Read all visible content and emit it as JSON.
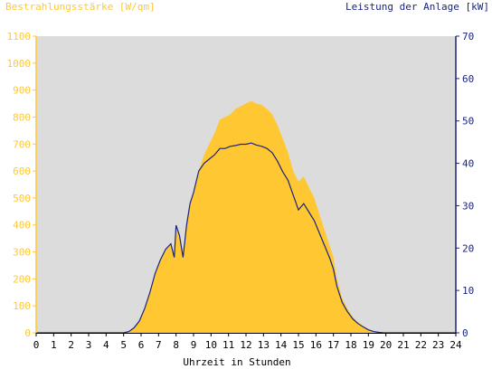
{
  "chart_data": {
    "type": "area",
    "left_axis_title": "Bestrahlungsstärke [W/qm]",
    "right_axis_title": "Leistung der Anlage [kW]",
    "xlabel": "Uhrzeit in Stunden",
    "xlim": [
      0,
      24
    ],
    "ylim_left": [
      0,
      1100
    ],
    "ylim_right": [
      0,
      70
    ],
    "x_ticks": [
      "0",
      "1",
      "2",
      "3",
      "4",
      "5",
      "6",
      "7",
      "8",
      "9",
      "10",
      "11",
      "12",
      "13",
      "14",
      "15",
      "16",
      "17",
      "18",
      "19",
      "20",
      "21",
      "22",
      "23",
      "24"
    ],
    "y_ticks_left": [
      "0",
      "100",
      "200",
      "300",
      "400",
      "500",
      "600",
      "700",
      "800",
      "900",
      "1000",
      "1100"
    ],
    "y_ticks_right": [
      "0",
      "10",
      "20",
      "30",
      "40",
      "50",
      "60",
      "70"
    ],
    "grid": false,
    "colors": {
      "plot_bg": "#dcdcdc",
      "irradiance": "#ffc832",
      "power": "#1a237e",
      "left_axis": "#ffc832",
      "right_axis": "#1a237e"
    },
    "series": [
      {
        "name": "Bestrahlungsstärke [W/qm]",
        "axis": "left",
        "x": [
          0,
          5.0,
          5.3,
          5.6,
          5.9,
          6.2,
          6.5,
          6.8,
          7.1,
          7.4,
          7.7,
          7.9,
          8.0,
          8.2,
          8.4,
          8.6,
          8.8,
          9.0,
          9.3,
          9.6,
          9.9,
          10.2,
          10.5,
          10.8,
          11.1,
          11.4,
          11.7,
          12.0,
          12.3,
          12.6,
          12.9,
          13.2,
          13.5,
          13.8,
          14.1,
          14.4,
          14.7,
          15.0,
          15.3,
          15.6,
          15.9,
          16.2,
          16.5,
          16.8,
          17.0,
          17.2,
          17.5,
          17.8,
          18.1,
          18.4,
          18.7,
          19.0,
          19.3,
          19.6,
          19.9,
          20.2,
          24
        ],
        "values": [
          0,
          0,
          5,
          20,
          45,
          90,
          150,
          220,
          270,
          310,
          330,
          280,
          400,
          360,
          280,
          400,
          480,
          520,
          600,
          660,
          700,
          740,
          790,
          800,
          810,
          830,
          840,
          850,
          860,
          850,
          845,
          830,
          810,
          770,
          720,
          670,
          600,
          560,
          580,
          540,
          500,
          440,
          380,
          320,
          280,
          200,
          130,
          90,
          60,
          40,
          25,
          12,
          5,
          2,
          0,
          0,
          0
        ]
      },
      {
        "name": "Leistung der Anlage [kW]",
        "axis": "right",
        "x": [
          0,
          5.0,
          5.3,
          5.6,
          5.9,
          6.2,
          6.5,
          6.8,
          7.1,
          7.4,
          7.7,
          7.9,
          8.0,
          8.2,
          8.4,
          8.6,
          8.8,
          9.0,
          9.3,
          9.6,
          9.9,
          10.2,
          10.5,
          10.8,
          11.1,
          11.4,
          11.7,
          12.0,
          12.3,
          12.6,
          12.9,
          13.2,
          13.5,
          13.8,
          14.1,
          14.4,
          14.7,
          15.0,
          15.3,
          15.6,
          15.9,
          16.2,
          16.5,
          16.8,
          17.0,
          17.2,
          17.5,
          17.8,
          18.1,
          18.4,
          18.7,
          19.0,
          19.3,
          19.6,
          19.9,
          20.2,
          24
        ],
        "values": [
          0,
          0,
          0.3,
          1.2,
          2.8,
          5.7,
          9.5,
          14.0,
          17.2,
          19.7,
          21.0,
          17.8,
          25.4,
          22.9,
          17.8,
          25.4,
          30.5,
          33.1,
          38.2,
          40.0,
          41.0,
          42.0,
          43.5,
          43.5,
          44.0,
          44.2,
          44.5,
          44.5,
          44.8,
          44.3,
          44.0,
          43.5,
          42.5,
          40.5,
          38.0,
          36.0,
          32.5,
          29.0,
          30.5,
          28.5,
          26.5,
          23.5,
          20.5,
          17.5,
          15.0,
          11.0,
          7.2,
          5.0,
          3.3,
          2.2,
          1.4,
          0.7,
          0.3,
          0.1,
          0,
          0,
          0
        ]
      }
    ]
  }
}
